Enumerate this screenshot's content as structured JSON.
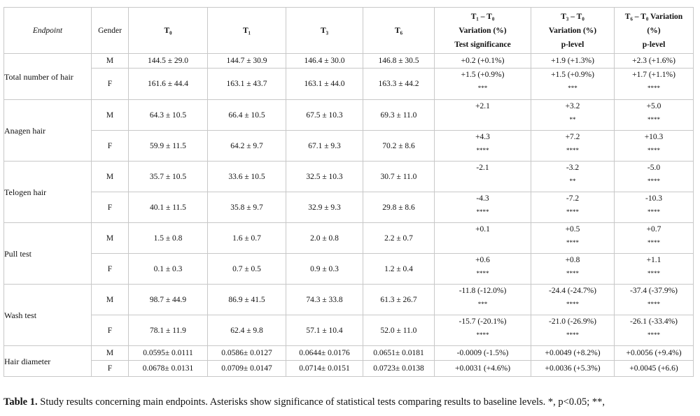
{
  "table": {
    "header": [
      {
        "lines": [
          "Endpoint"
        ]
      },
      {
        "lines": [
          "Gender"
        ]
      },
      {
        "lines": [
          "T₀"
        ]
      },
      {
        "lines": [
          "T₁"
        ]
      },
      {
        "lines": [
          "T₃"
        ]
      },
      {
        "lines": [
          "T₆"
        ]
      },
      {
        "lines": [
          "T₁ – T₀",
          "Variation (%)",
          "Test significance"
        ]
      },
      {
        "lines": [
          "T₃ – T₀",
          "Variation (%)",
          "p-level"
        ]
      },
      {
        "lines": [
          "T₆ – T₀ Variation",
          "(%)",
          "p-level"
        ]
      }
    ],
    "endpoints": [
      {
        "name": "Total number of hair",
        "rows": [
          {
            "gender": "M",
            "times": [
              "144.5 ± 29.0",
              "144.7 ± 30.9",
              "146.4 ± 30.0",
              "146.8 ± 30.5"
            ],
            "variations": [
              {
                "value": "+0.2 (+0.1%)"
              },
              {
                "value": "+1.9 (+1.3%)"
              },
              {
                "value": "+2.3 (+1.6%)"
              }
            ]
          },
          {
            "gender": "F",
            "times": [
              "161.6 ± 44.4",
              "163.1 ± 43.7",
              "163.1 ± 44.0",
              "163.3 ± 44.2"
            ],
            "variations": [
              {
                "value": "+1.5 (+0.9%)",
                "sig": "***"
              },
              {
                "value": "+1.5 (+0.9%)",
                "sig": "***"
              },
              {
                "value": "+1.7 (+1.1%)",
                "sig": "****"
              }
            ]
          }
        ]
      },
      {
        "name": "Anagen hair",
        "rows": [
          {
            "gender": "M",
            "times": [
              "64.3 ± 10.5",
              "66.4 ± 10.5",
              "67.5 ± 10.3",
              "69.3 ± 11.0"
            ],
            "variations": [
              {
                "value": "+2.1"
              },
              {
                "value": "+3.2",
                "sig": "**"
              },
              {
                "value": "+5.0",
                "sig": "****"
              }
            ]
          },
          {
            "gender": "F",
            "times": [
              "59.9 ± 11.5",
              "64.2 ± 9.7",
              "67.1 ± 9.3",
              "70.2 ± 8.6"
            ],
            "variations": [
              {
                "value": "+4.3",
                "sig": "****"
              },
              {
                "value": "+7.2",
                "sig": "****"
              },
              {
                "value": "+10.3",
                "sig": "****"
              }
            ]
          }
        ]
      },
      {
        "name": "Telogen hair",
        "rows": [
          {
            "gender": "M",
            "times": [
              "35.7 ± 10.5",
              "33.6 ± 10.5",
              "32.5 ± 10.3",
              "30.7 ± 11.0"
            ],
            "variations": [
              {
                "value": "-2.1"
              },
              {
                "value": "-3.2",
                "sig": "**"
              },
              {
                "value": "-5.0",
                "sig": "****"
              }
            ]
          },
          {
            "gender": "F",
            "times": [
              "40.1 ± 11.5",
              "35.8 ± 9.7",
              "32.9 ± 9.3",
              "29.8 ± 8.6"
            ],
            "variations": [
              {
                "value": "-4.3",
                "sig": "****"
              },
              {
                "value": "-7.2",
                "sig": "****"
              },
              {
                "value": "-10.3",
                "sig": "****"
              }
            ]
          }
        ]
      },
      {
        "name": "Pull test",
        "rows": [
          {
            "gender": "M",
            "times": [
              "1.5 ± 0.8",
              "1.6 ± 0.7",
              "2.0 ± 0.8",
              "2.2 ± 0.7"
            ],
            "variations": [
              {
                "value": "+0.1"
              },
              {
                "value": "+0.5",
                "sig": "****"
              },
              {
                "value": "+0.7",
                "sig": "****"
              }
            ]
          },
          {
            "gender": "F",
            "times": [
              "0.1 ± 0.3",
              "0.7 ± 0.5",
              "0.9 ± 0.3",
              "1.2 ± 0.4"
            ],
            "variations": [
              {
                "value": "+0.6",
                "sig": "****"
              },
              {
                "value": "+0.8",
                "sig": "****"
              },
              {
                "value": "+1.1",
                "sig": "****"
              }
            ]
          }
        ]
      },
      {
        "name": "Wash test",
        "rows": [
          {
            "gender": "M",
            "times": [
              "98.7 ± 44.9",
              "86.9 ± 41.5",
              "74.3 ± 33.8",
              "61.3 ± 26.7"
            ],
            "variations": [
              {
                "value": "-11.8 (-12.0%)",
                "sig": "***"
              },
              {
                "value": "-24.4 (-24.7%)",
                "sig": "****"
              },
              {
                "value": "-37.4 (-37.9%)",
                "sig": "****"
              }
            ]
          },
          {
            "gender": "F",
            "times": [
              "78.1 ± 11.9",
              "62.4 ± 9.8",
              "57.1 ± 10.4",
              "52.0 ± 11.0"
            ],
            "variations": [
              {
                "value": "-15.7 (-20.1%)",
                "sig": "****"
              },
              {
                "value": "-21.0 (-26.9%)",
                "sig": "****"
              },
              {
                "value": "-26.1 (-33.4%)",
                "sig": "****"
              }
            ]
          }
        ]
      },
      {
        "name": "Hair diameter",
        "rows": [
          {
            "gender": "M",
            "times": [
              "0.0595± 0.0111",
              "0.0586± 0.0127",
              "0.0644± 0.0176",
              "0.0651± 0.0181"
            ],
            "variations": [
              {
                "value": "-0.0009 (-1.5%)"
              },
              {
                "value": "+0.0049 (+8.2%)"
              },
              {
                "value": "+0.0056 (+9.4%)"
              }
            ]
          },
          {
            "gender": "F",
            "times": [
              "0.0678± 0.0131",
              "0.0709± 0.0147",
              "0.0714± 0.0151",
              "0.0723± 0.0138"
            ],
            "variations": [
              {
                "value": "+0.0031 (+4.6%)"
              },
              {
                "value": "+0.0036 (+5.3%)"
              },
              {
                "value": "+0.0045 (+6.6)"
              }
            ]
          }
        ]
      }
    ]
  },
  "caption": {
    "label": "Table 1.",
    "text": "Study results concerning main endpoints. Asterisks show significance of statistical tests comparing results to baseline levels. *, p<0.05; **,"
  }
}
